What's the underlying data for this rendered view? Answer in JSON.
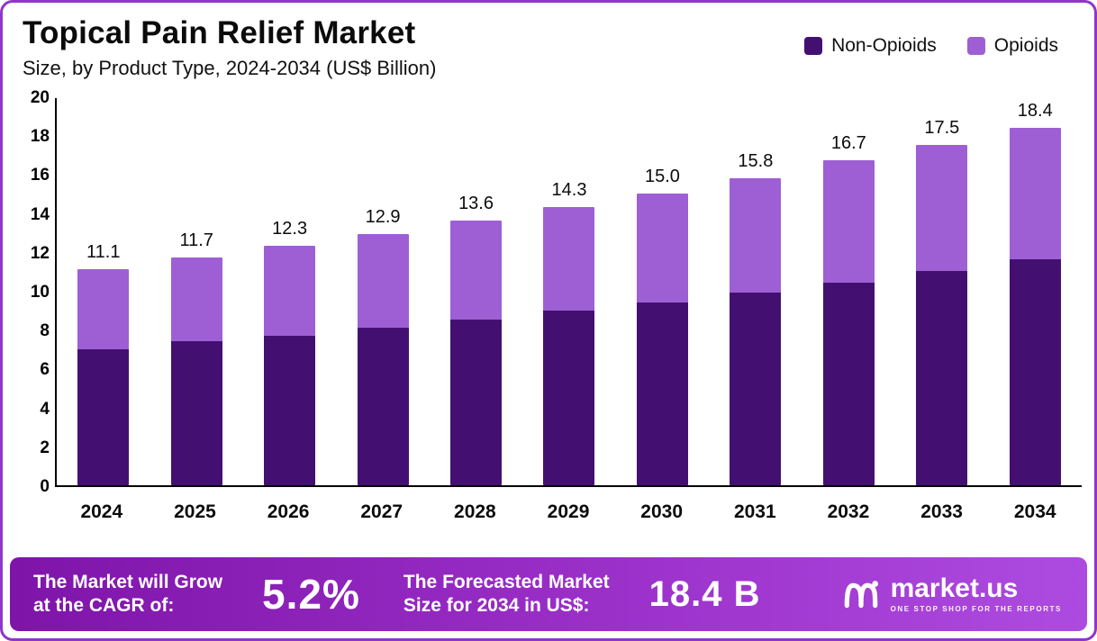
{
  "header": {
    "title": "Topical Pain Relief Market",
    "subtitle": "Size, by Product Type, 2024-2034 (US$ Billion)"
  },
  "legend": {
    "items": [
      {
        "label": "Non-Opioids",
        "color": "#431072"
      },
      {
        "label": "Opioids",
        "color": "#9e5fd4"
      }
    ]
  },
  "chart_data": {
    "type": "bar",
    "stacked": true,
    "title": "Topical Pain Relief Market Size, by Product Type, 2024-2034 (US$ Billion)",
    "categories": [
      "2024",
      "2025",
      "2026",
      "2027",
      "2028",
      "2029",
      "2030",
      "2031",
      "2032",
      "2033",
      "2034"
    ],
    "series": [
      {
        "name": "Non-Opioids",
        "color": "#431072",
        "values": [
          7.0,
          7.4,
          7.7,
          8.1,
          8.5,
          9.0,
          9.4,
          9.9,
          10.4,
          11.0,
          11.6
        ]
      },
      {
        "name": "Opioids",
        "color": "#9e5fd4",
        "values": [
          4.1,
          4.3,
          4.6,
          4.8,
          5.1,
          5.3,
          5.6,
          5.9,
          6.3,
          6.5,
          6.8
        ]
      }
    ],
    "total_labels": [
      "11.1",
      "11.7",
      "12.3",
      "12.9",
      "13.6",
      "14.3",
      "15.0",
      "15.8",
      "16.7",
      "17.5",
      "18.4"
    ],
    "xlabel": "",
    "ylabel": "",
    "ylim": [
      0,
      20
    ],
    "ytick_step": 2,
    "grid": false,
    "legend_position": "top-right"
  },
  "footer": {
    "cagr_label": "The Market will Grow\nat the CAGR of:",
    "cagr_value": "5.2%",
    "forecast_label": "The Forecasted Market\nSize for 2034 in US$:",
    "forecast_value": "18.4 B",
    "brand": "market.us",
    "brand_tagline": "ONE STOP SHOP FOR THE REPORTS"
  }
}
